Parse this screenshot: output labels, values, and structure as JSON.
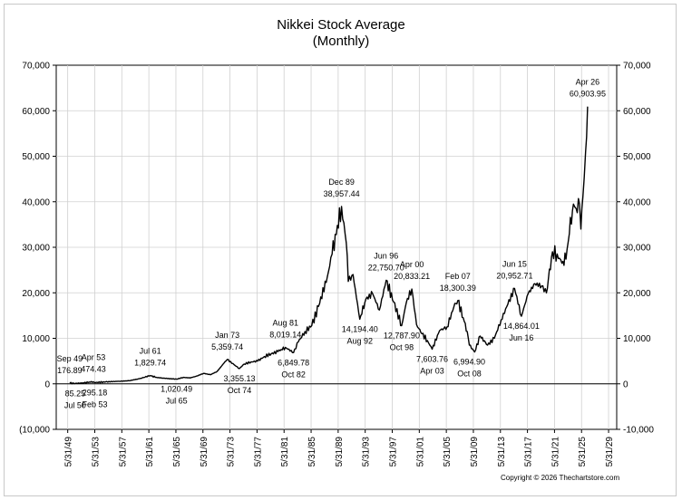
{
  "chart_data": {
    "type": "line",
    "title": "Nikkei Stock Average",
    "subtitle": "(Monthly)",
    "xlabel": "",
    "ylabel": "",
    "ylim": [
      -10000,
      70000
    ],
    "xlim": [
      1947.7,
      2030.6
    ],
    "y_ticks": [
      -10000,
      0,
      10000,
      20000,
      30000,
      40000,
      50000,
      60000,
      70000
    ],
    "y_tick_labels": [
      "(10,000",
      "0",
      "10,000",
      "20,000",
      "30,000",
      "40,000",
      "50,000",
      "60,000",
      "70,000"
    ],
    "y_tick_labels_right": [
      "-10,000",
      "0",
      "10,000",
      "20,000",
      "30,000",
      "40,000",
      "50,000",
      "60,000",
      "70,000"
    ],
    "x_ticks": [
      1949.4,
      1953.4,
      1957.4,
      1961.4,
      1965.4,
      1969.4,
      1973.4,
      1977.4,
      1981.4,
      1985.4,
      1989.4,
      1993.4,
      1997.4,
      2001.4,
      2005.4,
      2009.4,
      2013.4,
      2017.4,
      2021.4,
      2025.4,
      2029.4
    ],
    "x_tick_labels": [
      "5/31/49",
      "5/31/53",
      "5/31/57",
      "5/31/61",
      "5/31/65",
      "5/31/69",
      "5/31/73",
      "5/31/77",
      "5/31/81",
      "5/31/85",
      "5/31/89",
      "5/31/93",
      "5/31/97",
      "5/31/01",
      "5/31/05",
      "5/31/09",
      "5/31/13",
      "5/31/17",
      "5/31/21",
      "5/31/25",
      "5/31/29"
    ],
    "grid": true,
    "series": [
      {
        "name": "",
        "color": "#000000",
        "x": [
          1949.7,
          1950.5,
          1951.5,
          1953.2,
          1953.4,
          1955.0,
          1957.0,
          1958.5,
          1960.0,
          1961.6,
          1962.5,
          1963.5,
          1965.5,
          1966.5,
          1967.5,
          1968.5,
          1969.5,
          1970.5,
          1971.5,
          1972.5,
          1973.0,
          1974.0,
          1974.8,
          1975.5,
          1976.5,
          1977.5,
          1978.5,
          1979.5,
          1980.5,
          1981.6,
          1982.8,
          1983.5,
          1984.5,
          1985.5,
          1986.5,
          1987.8,
          1988.5,
          1989.9,
          1990.6,
          1990.9,
          1991.6,
          1992.6,
          1993.5,
          1994.5,
          1995.5,
          1996.5,
          1997.6,
          1998.8,
          1999.5,
          2000.3,
          2001.0,
          2001.8,
          2002.6,
          2003.3,
          2004.4,
          2005.5,
          2006.5,
          2007.1,
          2007.9,
          2008.5,
          2008.8,
          2009.6,
          2010.4,
          2011.5,
          2012.5,
          2013.5,
          2014.5,
          2015.5,
          2016.5,
          2017.5,
          2018.5,
          2019.5,
          2020.2,
          2021.1,
          2021.8,
          2022.5,
          2023.1,
          2023.6,
          2024.2,
          2024.6,
          2025.1,
          2025.3,
          2025.6,
          2026.0,
          2026.3
        ],
        "values": [
          176.89,
          85.25,
          166,
          474.43,
          295.18,
          425,
          565,
          686,
          1117,
          1829.74,
          1420,
          1250,
          1020.49,
          1430,
          1290,
          1715,
          2300,
          2000,
          2710,
          4550,
          5359.74,
          4200,
          3355.13,
          4350,
          4800,
          5000,
          6000,
          6600,
          7100,
          8019.14,
          6849.78,
          9200,
          11500,
          12800,
          17000,
          23500,
          28500,
          38957.44,
          31000,
          22500,
          24000,
          14194.4,
          18600,
          19800,
          16200,
          22750.7,
          18000,
          12787.9,
          18000,
          20833.21,
          13000,
          11000,
          9500,
          7603.76,
          11700,
          12500,
          16800,
          18300.39,
          14500,
          11500,
          8500,
          6994.9,
          10500,
          8500,
          10000,
          14000,
          17500,
          20952.71,
          14864.01,
          19800,
          22000,
          21500,
          20000,
          29000,
          28500,
          26500,
          27400,
          33000,
          39500,
          38500,
          39500,
          34000,
          41000,
          51000,
          60903.95
        ]
      }
    ],
    "annotations": [
      {
        "label": "Sep 49",
        "value": "176.89",
        "x": 1949.7,
        "y": 176.89,
        "pos": "above"
      },
      {
        "label": "Apr 53",
        "value": "474.43",
        "x": 1953.2,
        "y": 474.43,
        "pos": "above"
      },
      {
        "label": "Jul 61",
        "value": "1,829.74",
        "x": 1961.6,
        "y": 1829.74,
        "pos": "above"
      },
      {
        "label": "Jan 73",
        "value": "5,359.74",
        "x": 1973.0,
        "y": 5359.74,
        "pos": "above"
      },
      {
        "label": "Aug 81",
        "value": "8,019.14",
        "x": 1981.6,
        "y": 8019.14,
        "pos": "above"
      },
      {
        "label": "Dec 89",
        "value": "38,957.44",
        "x": 1989.9,
        "y": 38957.44,
        "pos": "above"
      },
      {
        "label": "Jun 96",
        "value": "22,750.70",
        "x": 1996.5,
        "y": 22750.7,
        "pos": "above"
      },
      {
        "label": "Apr 00",
        "value": "20,833.21",
        "x": 2000.3,
        "y": 20833.21,
        "pos": "above"
      },
      {
        "label": "Feb 07",
        "value": "18,300.39",
        "x": 2007.1,
        "y": 18300.39,
        "pos": "above"
      },
      {
        "label": "Jun 15",
        "value": "20,952.71",
        "x": 2015.5,
        "y": 20952.71,
        "pos": "above"
      },
      {
        "label": "Apr 26",
        "value": "60,903.95",
        "x": 2026.3,
        "y": 60903.95,
        "pos": "above"
      },
      {
        "label": "Jul 50",
        "value": "85.25",
        "x": 1950.5,
        "y": 85.25,
        "pos": "below"
      },
      {
        "label": "Feb 53",
        "value": "295.18",
        "x": 1953.4,
        "y": 295.18,
        "pos": "below"
      },
      {
        "label": "Jul 65",
        "value": "1,020.49",
        "x": 1965.5,
        "y": 1020.49,
        "pos": "below"
      },
      {
        "label": "Oct 74",
        "value": "3,355.13",
        "x": 1974.8,
        "y": 3355.13,
        "pos": "below"
      },
      {
        "label": "Oct 82",
        "value": "6,849.78",
        "x": 1982.8,
        "y": 6849.78,
        "pos": "below"
      },
      {
        "label": "Aug 92",
        "value": "14,194.40",
        "x": 1992.6,
        "y": 14194.4,
        "pos": "below"
      },
      {
        "label": "Oct 98",
        "value": "12,787.90",
        "x": 1998.8,
        "y": 12787.9,
        "pos": "below"
      },
      {
        "label": "Apr 03",
        "value": "7,603.76",
        "x": 2003.3,
        "y": 7603.76,
        "pos": "below"
      },
      {
        "label": "Oct 08",
        "value": "6,994.90",
        "x": 2008.8,
        "y": 6994.9,
        "pos": "below"
      },
      {
        "label": "Jun 16",
        "value": "14,864.01",
        "x": 2016.5,
        "y": 14864.01,
        "pos": "below"
      }
    ]
  },
  "footer": {
    "copyright": "Copyright © 2026 Thechartstore.com"
  }
}
